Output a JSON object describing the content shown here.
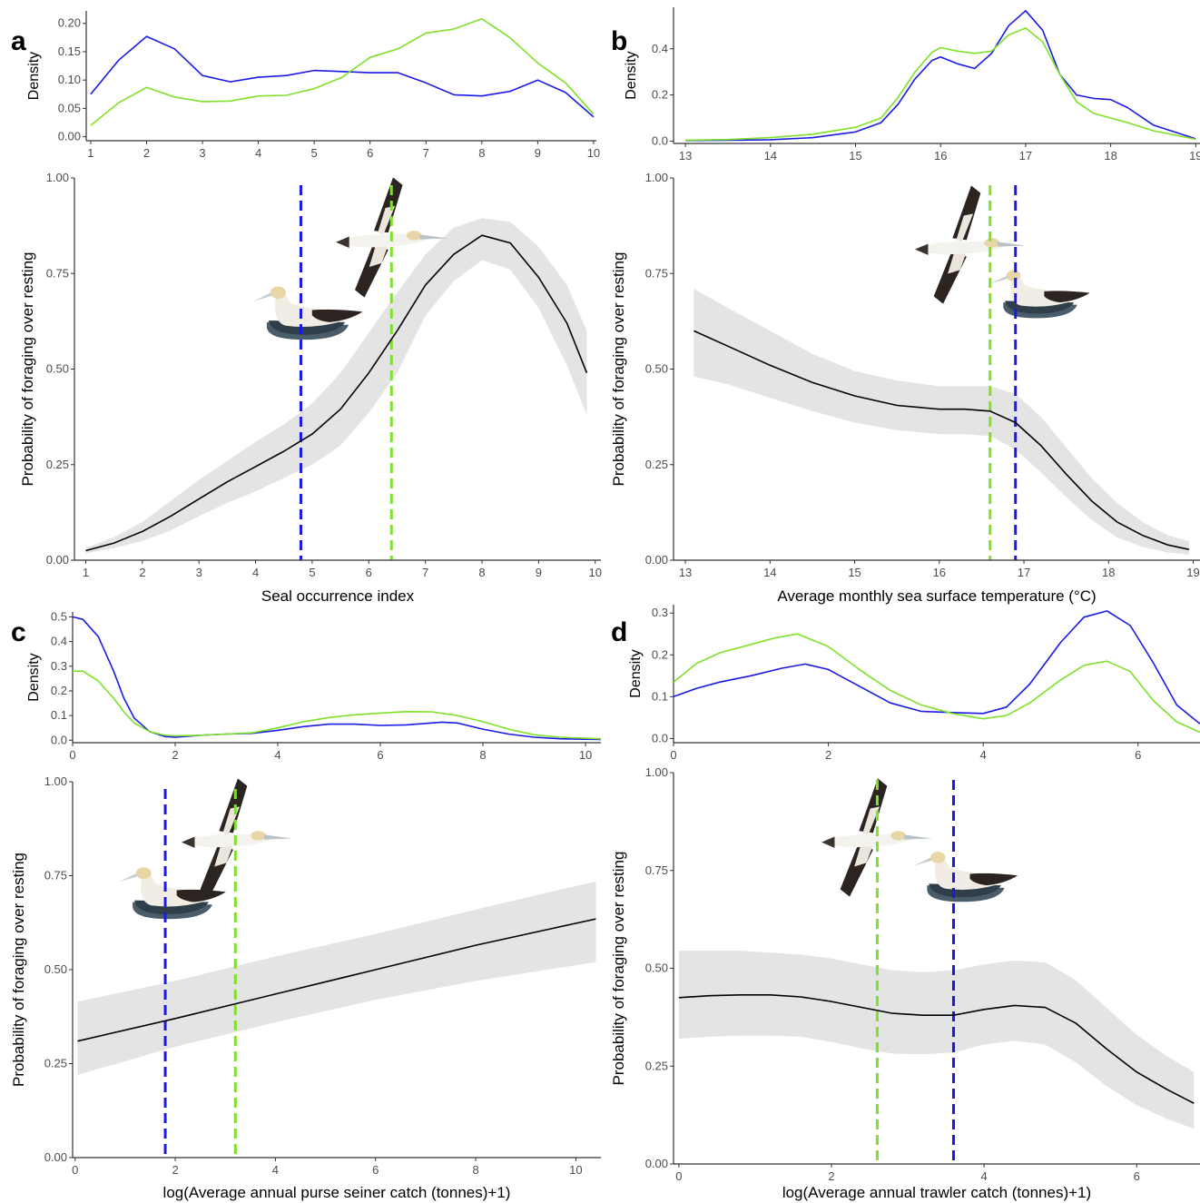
{
  "colors": {
    "green": "#7ee12a",
    "blue": "#1a1ae6",
    "band": "#e4e4e4",
    "line": "#000000"
  },
  "chart_data": [
    {
      "panel": "a",
      "type": "line",
      "density": {
        "ylabel": "Density",
        "xlim": [
          0.92,
          10.05
        ],
        "ylim": [
          -0.007,
          0.222
        ],
        "xticks": [
          1,
          2,
          3,
          4,
          5,
          6,
          7,
          8,
          9,
          10
        ],
        "xtick_labels": [
          "1",
          "2",
          "3",
          "4",
          "5",
          "6",
          "7",
          "8",
          "9",
          "10"
        ],
        "yticks": [
          0,
          0.05,
          0.1,
          0.15,
          0.2
        ],
        "ytick_labels": [
          "0.00",
          "0.05",
          "0.10",
          "0.15",
          "0.20"
        ],
        "series": [
          {
            "color": "blue",
            "x": [
              1,
              1.5,
              2,
              2.5,
              3,
              3.5,
              4,
              4.5,
              5,
              5.5,
              6,
              6.5,
              7,
              7.5,
              8,
              8.5,
              9,
              9.5,
              10
            ],
            "y": [
              0.075,
              0.135,
              0.177,
              0.155,
              0.108,
              0.097,
              0.105,
              0.108,
              0.117,
              0.115,
              0.113,
              0.113,
              0.095,
              0.074,
              0.072,
              0.08,
              0.1,
              0.078,
              0.035
            ]
          },
          {
            "color": "green",
            "x": [
              1,
              1.5,
              2,
              2.5,
              3,
              3.5,
              4,
              4.5,
              5,
              5.5,
              6,
              6.5,
              7,
              7.5,
              8,
              8.5,
              9,
              9.5,
              10
            ],
            "y": [
              0.02,
              0.06,
              0.087,
              0.07,
              0.062,
              0.063,
              0.072,
              0.073,
              0.085,
              0.105,
              0.14,
              0.155,
              0.183,
              0.19,
              0.208,
              0.175,
              0.13,
              0.095,
              0.04
            ]
          }
        ]
      },
      "main": {
        "xlabel": "Seal occurrence index",
        "ylabel": "Probability of foraging over resting",
        "xlim": [
          0.8,
          10.1
        ],
        "ylim": [
          0,
          1
        ],
        "xticks": [
          1,
          2,
          3,
          4,
          5,
          6,
          7,
          8,
          9,
          10
        ],
        "xtick_labels": [
          "1",
          "2",
          "3",
          "4",
          "5",
          "6",
          "7",
          "8",
          "9",
          "10"
        ],
        "yticks": [
          0,
          0.25,
          0.5,
          0.75,
          1
        ],
        "ytick_labels": [
          "0.00",
          "0.25",
          "0.50",
          "0.75",
          "1.00"
        ],
        "x": [
          1,
          1.5,
          2,
          2.5,
          3,
          3.5,
          4,
          4.5,
          5,
          5.5,
          6,
          6.5,
          7,
          7.5,
          8,
          8.5,
          9,
          9.5,
          9.85
        ],
        "fit": [
          0.025,
          0.045,
          0.075,
          0.115,
          0.16,
          0.205,
          0.245,
          0.285,
          0.33,
          0.395,
          0.49,
          0.6,
          0.72,
          0.8,
          0.85,
          0.83,
          0.74,
          0.62,
          0.49
        ],
        "lower": [
          0.018,
          0.032,
          0.05,
          0.078,
          0.115,
          0.15,
          0.18,
          0.215,
          0.25,
          0.3,
          0.385,
          0.49,
          0.64,
          0.73,
          0.785,
          0.76,
          0.66,
          0.51,
          0.38
        ],
        "upper": [
          0.032,
          0.06,
          0.1,
          0.155,
          0.21,
          0.26,
          0.31,
          0.355,
          0.41,
          0.49,
          0.595,
          0.7,
          0.8,
          0.87,
          0.895,
          0.885,
          0.82,
          0.72,
          0.6
        ],
        "vlines": [
          {
            "x": 4.8,
            "color": "blue"
          },
          {
            "x": 6.4,
            "color": "green"
          }
        ]
      }
    },
    {
      "panel": "b",
      "type": "line",
      "density": {
        "ylabel": "Density",
        "xlim": [
          12.86,
          19.05
        ],
        "ylim": [
          -0.01,
          0.58
        ],
        "xticks": [
          13,
          14,
          15,
          16,
          17,
          18,
          19
        ],
        "xtick_labels": [
          "13",
          "14",
          "15",
          "16",
          "17",
          "18",
          "19"
        ],
        "yticks": [
          0,
          0.2,
          0.4
        ],
        "ytick_labels": [
          "0.0",
          "0.2",
          "0.4"
        ],
        "series": [
          {
            "color": "blue",
            "x": [
              13,
              13.5,
              14,
              14.5,
              15,
              15.3,
              15.5,
              15.7,
              15.9,
              16,
              16.2,
              16.4,
              16.6,
              16.8,
              17,
              17.2,
              17.4,
              17.6,
              17.8,
              18,
              18.2,
              18.5,
              19
            ],
            "y": [
              0.003,
              0.004,
              0.006,
              0.015,
              0.04,
              0.08,
              0.16,
              0.27,
              0.35,
              0.365,
              0.335,
              0.315,
              0.38,
              0.5,
              0.565,
              0.48,
              0.29,
              0.2,
              0.185,
              0.18,
              0.145,
              0.07,
              0.01
            ]
          },
          {
            "color": "green",
            "x": [
              13,
              13.5,
              14,
              14.5,
              15,
              15.3,
              15.5,
              15.7,
              15.9,
              16,
              16.2,
              16.4,
              16.6,
              16.8,
              17,
              17.2,
              17.4,
              17.6,
              17.8,
              18,
              18.2,
              18.5,
              19
            ],
            "y": [
              0.004,
              0.007,
              0.015,
              0.03,
              0.06,
              0.1,
              0.19,
              0.3,
              0.385,
              0.405,
              0.39,
              0.38,
              0.39,
              0.46,
              0.49,
              0.43,
              0.29,
              0.17,
              0.12,
              0.1,
              0.08,
              0.045,
              0.008
            ]
          }
        ]
      },
      "main": {
        "xlabel": "Average monthly sea surface temperature (°C)",
        "ylabel": "Probability of foraging over resting",
        "xlim": [
          12.86,
          19.08
        ],
        "ylim": [
          0,
          1
        ],
        "xticks": [
          13,
          14,
          15,
          16,
          17,
          18,
          19
        ],
        "xtick_labels": [
          "13",
          "14",
          "15",
          "16",
          "17",
          "18",
          "19"
        ],
        "yticks": [
          0,
          0.25,
          0.5,
          0.75,
          1
        ],
        "ytick_labels": [
          "0.00",
          "0.25",
          "0.50",
          "0.75",
          "1.00"
        ],
        "x": [
          13.1,
          13.5,
          14,
          14.5,
          15,
          15.5,
          16,
          16.3,
          16.6,
          16.9,
          17.2,
          17.5,
          17.8,
          18.1,
          18.4,
          18.7,
          18.95
        ],
        "fit": [
          0.6,
          0.56,
          0.51,
          0.465,
          0.43,
          0.405,
          0.395,
          0.395,
          0.39,
          0.36,
          0.3,
          0.225,
          0.155,
          0.1,
          0.065,
          0.04,
          0.028
        ],
        "lower": [
          0.48,
          0.46,
          0.425,
          0.39,
          0.36,
          0.34,
          0.33,
          0.33,
          0.325,
          0.29,
          0.23,
          0.165,
          0.105,
          0.06,
          0.035,
          0.02,
          0.015
        ],
        "upper": [
          0.71,
          0.66,
          0.6,
          0.54,
          0.495,
          0.47,
          0.455,
          0.455,
          0.455,
          0.435,
          0.375,
          0.295,
          0.215,
          0.15,
          0.1,
          0.065,
          0.05
        ],
        "vlines": [
          {
            "x": 16.6,
            "color": "green"
          },
          {
            "x": 16.9,
            "color": "blue"
          }
        ]
      }
    },
    {
      "panel": "c",
      "type": "line",
      "density": {
        "ylabel": "Density",
        "xlim": [
          0,
          10.3
        ],
        "ylim": [
          -0.01,
          0.52
        ],
        "xticks": [
          0,
          2,
          4,
          6,
          8,
          10
        ],
        "xtick_labels": [
          "0",
          "2",
          "4",
          "6",
          "8",
          "10"
        ],
        "yticks": [
          0,
          0.1,
          0.2,
          0.3,
          0.4,
          0.5
        ],
        "ytick_labels": [
          "0.0",
          "0.1",
          "0.2",
          "0.3",
          "0.4",
          "0.5"
        ],
        "series": [
          {
            "color": "blue",
            "x": [
              0,
              0.2,
              0.5,
              0.8,
              1,
              1.2,
              1.5,
              1.8,
              2,
              2.5,
              3,
              3.5,
              4,
              4.5,
              5,
              5.5,
              6,
              6.5,
              7,
              7.2,
              7.5,
              8,
              8.5,
              9,
              9.5,
              10,
              10.3
            ],
            "y": [
              0.5,
              0.49,
              0.42,
              0.28,
              0.17,
              0.09,
              0.035,
              0.015,
              0.012,
              0.02,
              0.025,
              0.028,
              0.04,
              0.055,
              0.065,
              0.065,
              0.06,
              0.062,
              0.07,
              0.073,
              0.07,
              0.045,
              0.025,
              0.012,
              0.006,
              0.004,
              0.003
            ]
          },
          {
            "color": "green",
            "x": [
              0,
              0.2,
              0.5,
              0.8,
              1,
              1.2,
              1.5,
              1.8,
              2,
              2.5,
              3,
              3.5,
              4,
              4.5,
              5,
              5.5,
              6,
              6.5,
              7,
              7.5,
              8,
              8.5,
              9,
              9.5,
              10,
              10.3
            ],
            "y": [
              0.28,
              0.28,
              0.24,
              0.17,
              0.115,
              0.07,
              0.035,
              0.02,
              0.018,
              0.02,
              0.025,
              0.03,
              0.05,
              0.075,
              0.092,
              0.103,
              0.11,
              0.116,
              0.115,
              0.1,
              0.075,
              0.045,
              0.022,
              0.012,
              0.008,
              0.006
            ]
          }
        ]
      },
      "main": {
        "xlabel": "log(Average annual purse seiner catch (tonnes)+1)",
        "ylabel": "Probability of foraging over resting",
        "xlim": [
          -0.05,
          10.5
        ],
        "ylim": [
          0,
          1
        ],
        "xticks": [
          0,
          2,
          4,
          6,
          8,
          10
        ],
        "xtick_labels": [
          "0",
          "2",
          "4",
          "6",
          "8",
          "10"
        ],
        "yticks": [
          0,
          0.25,
          0.5,
          0.75,
          1
        ],
        "ytick_labels": [
          "0.00",
          "0.25",
          "0.50",
          "0.75",
          "1.00"
        ],
        "x": [
          0.05,
          2,
          4,
          6,
          8,
          10.4
        ],
        "fit": [
          0.31,
          0.37,
          0.435,
          0.5,
          0.565,
          0.635
        ],
        "lower": [
          0.22,
          0.295,
          0.36,
          0.42,
          0.47,
          0.52
        ],
        "upper": [
          0.415,
          0.47,
          0.535,
          0.595,
          0.66,
          0.735
        ],
        "vlines": [
          {
            "x": 1.8,
            "color": "blue"
          },
          {
            "x": 3.2,
            "color": "green"
          }
        ]
      }
    },
    {
      "panel": "d",
      "type": "line",
      "density": {
        "ylabel": "Density",
        "xlim": [
          0,
          6.8
        ],
        "ylim": [
          -0.01,
          0.32
        ],
        "xticks": [
          0,
          2,
          4,
          6
        ],
        "xtick_labels": [
          "0",
          "2",
          "4",
          "6"
        ],
        "yticks": [
          0,
          0.1,
          0.2,
          0.3
        ],
        "ytick_labels": [
          "0.0",
          "0.1",
          "0.2",
          "0.3"
        ],
        "series": [
          {
            "color": "blue",
            "x": [
              0,
              0.3,
              0.6,
              1,
              1.4,
              1.7,
              2,
              2.4,
              2.8,
              3.2,
              3.6,
              4,
              4.3,
              4.6,
              5,
              5.3,
              5.6,
              5.9,
              6.2,
              6.5,
              6.8
            ],
            "y": [
              0.1,
              0.12,
              0.135,
              0.15,
              0.168,
              0.178,
              0.165,
              0.125,
              0.085,
              0.065,
              0.062,
              0.06,
              0.075,
              0.13,
              0.23,
              0.29,
              0.305,
              0.27,
              0.18,
              0.08,
              0.035
            ]
          },
          {
            "color": "green",
            "x": [
              0,
              0.3,
              0.6,
              1,
              1.3,
              1.6,
              2,
              2.4,
              2.8,
              3.2,
              3.6,
              4,
              4.3,
              4.6,
              5,
              5.3,
              5.6,
              5.9,
              6.2,
              6.5,
              6.8
            ],
            "y": [
              0.135,
              0.18,
              0.205,
              0.225,
              0.24,
              0.25,
              0.22,
              0.165,
              0.115,
              0.08,
              0.06,
              0.047,
              0.055,
              0.085,
              0.14,
              0.175,
              0.185,
              0.16,
              0.09,
              0.04,
              0.015
            ]
          }
        ]
      },
      "main": {
        "xlabel": "log(Average annual trawler catch (tonnes)+1)",
        "ylabel": "Probability of foraging over resting",
        "xlim": [
          -0.07,
          6.83
        ],
        "ylim": [
          0,
          1
        ],
        "xticks": [
          0,
          2,
          4,
          6
        ],
        "xtick_labels": [
          "0",
          "2",
          "4",
          "6"
        ],
        "yticks": [
          0,
          0.25,
          0.5,
          0.75,
          1
        ],
        "ytick_labels": [
          "0.00",
          "0.25",
          "0.50",
          "0.75",
          "1.00"
        ],
        "x": [
          0,
          0.4,
          0.8,
          1.2,
          1.6,
          2,
          2.4,
          2.8,
          3.2,
          3.6,
          4,
          4.4,
          4.8,
          5.2,
          5.6,
          6,
          6.4,
          6.75
        ],
        "fit": [
          0.425,
          0.43,
          0.432,
          0.432,
          0.427,
          0.415,
          0.4,
          0.385,
          0.38,
          0.38,
          0.395,
          0.405,
          0.4,
          0.36,
          0.295,
          0.235,
          0.19,
          0.155
        ],
        "lower": [
          0.32,
          0.325,
          0.328,
          0.328,
          0.325,
          0.312,
          0.295,
          0.282,
          0.28,
          0.285,
          0.305,
          0.315,
          0.305,
          0.26,
          0.2,
          0.15,
          0.115,
          0.09
        ],
        "upper": [
          0.545,
          0.545,
          0.545,
          0.54,
          0.535,
          0.525,
          0.51,
          0.495,
          0.49,
          0.495,
          0.51,
          0.52,
          0.515,
          0.47,
          0.4,
          0.33,
          0.275,
          0.235
        ],
        "vlines": [
          {
            "x": 2.6,
            "color": "green"
          },
          {
            "x": 3.6,
            "color": "blue"
          }
        ]
      }
    }
  ]
}
